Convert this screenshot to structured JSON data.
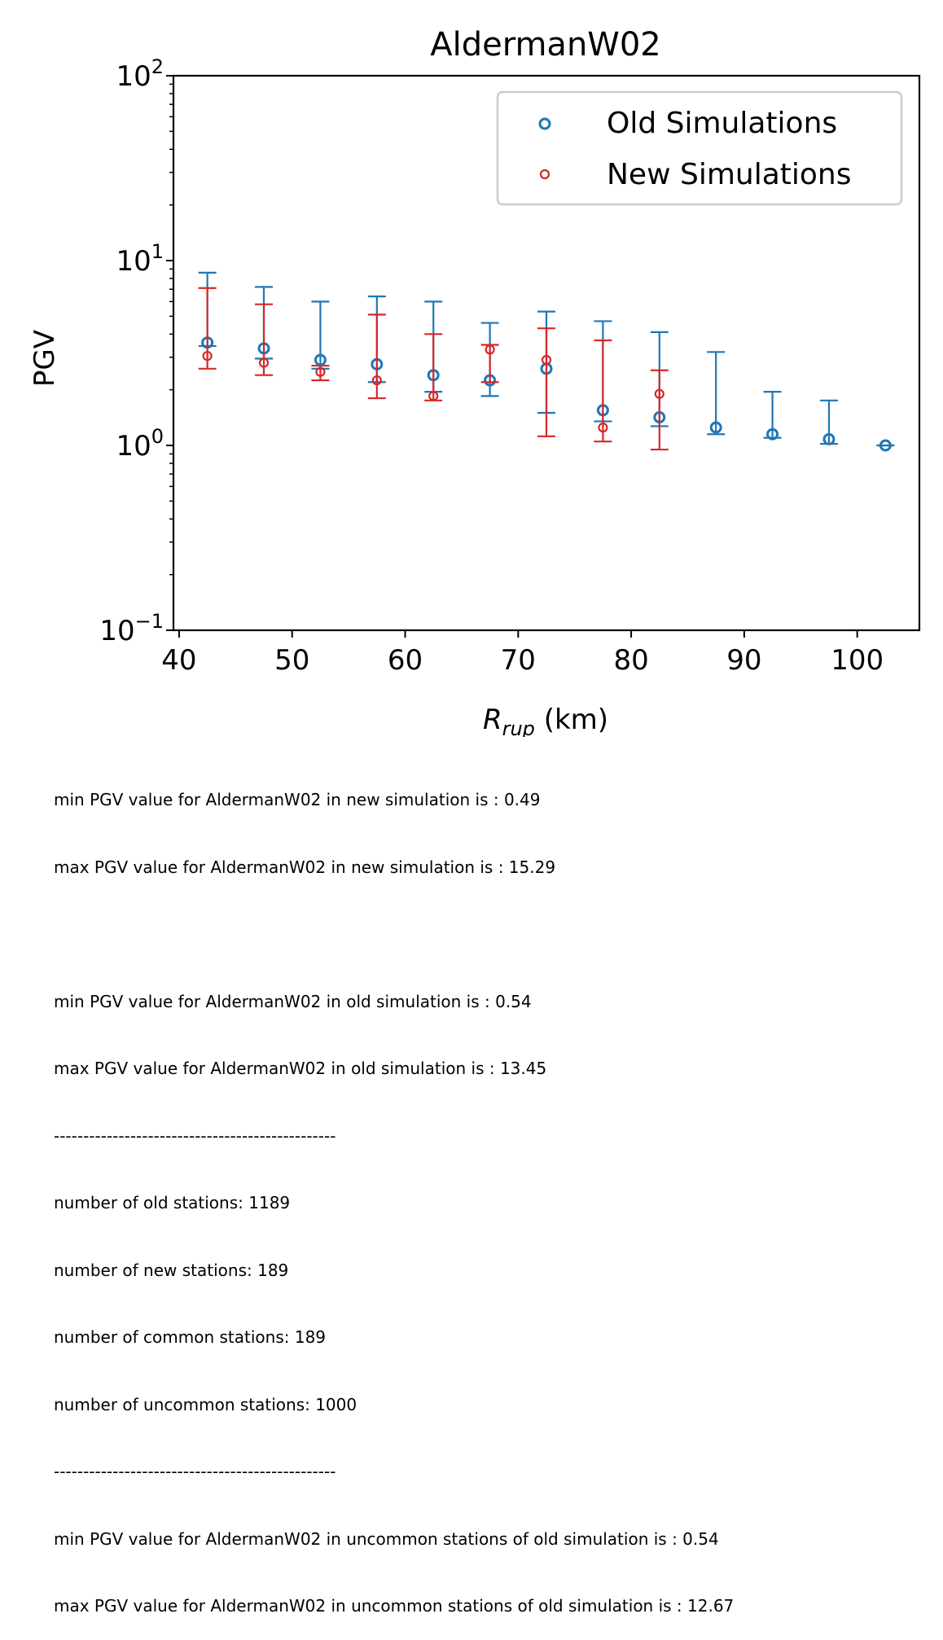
{
  "chart_data": {
    "type": "scatter",
    "title": "AldermanW02",
    "xlabel_main": "R",
    "xlabel_sub": "rup",
    "xlabel_unit": " (km)",
    "ylabel": "PGV",
    "yscale": "log",
    "xlim": [
      39.5,
      105.5
    ],
    "ylim": [
      0.1,
      100
    ],
    "x_ticks": [
      40,
      50,
      60,
      70,
      80,
      90,
      100
    ],
    "y_ticks": [
      {
        "value": 0.1,
        "base": "10",
        "exp": "−1"
      },
      {
        "value": 1,
        "base": "10",
        "exp": "0"
      },
      {
        "value": 10,
        "base": "10",
        "exp": "1"
      },
      {
        "value": 100,
        "base": "10",
        "exp": "2"
      }
    ],
    "grid": false,
    "legend_position": "top-right",
    "series": [
      {
        "name": "Old Simulations",
        "color": "#1f77b4",
        "marker_size": "larger",
        "points": [
          {
            "x": 42.5,
            "y": 3.6,
            "low": 3.45,
            "high": 8.6
          },
          {
            "x": 47.5,
            "y": 3.35,
            "low": 2.95,
            "high": 7.2
          },
          {
            "x": 52.5,
            "y": 2.9,
            "low": 2.6,
            "high": 6.0
          },
          {
            "x": 57.5,
            "y": 2.75,
            "low": 2.2,
            "high": 6.4
          },
          {
            "x": 62.5,
            "y": 2.4,
            "low": 1.95,
            "high": 6.0
          },
          {
            "x": 67.5,
            "y": 2.25,
            "low": 1.85,
            "high": 4.6
          },
          {
            "x": 72.5,
            "y": 2.6,
            "low": 1.5,
            "high": 5.3
          },
          {
            "x": 77.5,
            "y": 1.55,
            "low": 1.35,
            "high": 4.7
          },
          {
            "x": 82.5,
            "y": 1.42,
            "low": 1.27,
            "high": 4.1
          },
          {
            "x": 87.5,
            "y": 1.25,
            "low": 1.15,
            "high": 3.2
          },
          {
            "x": 92.5,
            "y": 1.15,
            "low": 1.1,
            "high": 1.95
          },
          {
            "x": 97.5,
            "y": 1.08,
            "low": 1.02,
            "high": 1.75
          },
          {
            "x": 102.5,
            "y": 1.0,
            "low": 1.0,
            "high": 1.0
          }
        ]
      },
      {
        "name": "New Simulations",
        "color": "#d62728",
        "marker_size": "smaller",
        "points": [
          {
            "x": 42.5,
            "y": 3.05,
            "low": 2.6,
            "high": 7.1
          },
          {
            "x": 47.5,
            "y": 2.8,
            "low": 2.4,
            "high": 5.8
          },
          {
            "x": 52.5,
            "y": 2.5,
            "low": 2.25,
            "high": 2.7
          },
          {
            "x": 57.5,
            "y": 2.25,
            "low": 1.8,
            "high": 5.1
          },
          {
            "x": 62.5,
            "y": 1.85,
            "low": 1.75,
            "high": 4.0
          },
          {
            "x": 67.5,
            "y": 3.3,
            "low": 2.2,
            "high": 3.5
          },
          {
            "x": 72.5,
            "y": 2.9,
            "low": 1.12,
            "high": 4.3
          },
          {
            "x": 77.5,
            "y": 1.25,
            "low": 1.05,
            "high": 3.7
          },
          {
            "x": 82.5,
            "y": 1.9,
            "low": 0.95,
            "high": 2.55
          }
        ]
      }
    ]
  },
  "notes": [
    "min PGV value for AldermanW02 in new simulation is : 0.49",
    "max PGV value for AldermanW02 in new simulation is : 15.29",
    "",
    "min PGV value for AldermanW02 in old simulation is : 0.54",
    "max PGV value for AldermanW02 in old simulation is : 13.45",
    "------------------------------------------------",
    "number of old stations: 1189",
    "number of new stations: 189",
    "number of common stations: 189",
    "number of uncommon stations: 1000",
    "------------------------------------------------",
    "min PGV value for AldermanW02 in uncommon stations of old simulation is : 0.54",
    "max PGV value for AldermanW02 in uncommon stations of old simulation is : 12.67"
  ]
}
